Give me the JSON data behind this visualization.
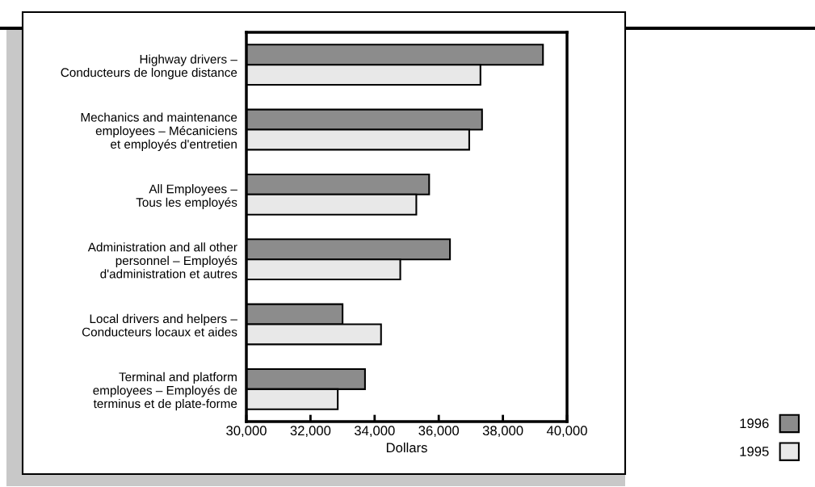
{
  "chart_data": {
    "type": "bar",
    "orientation": "horizontal",
    "xlabel": "Dollars",
    "categories": [
      "Highway drivers –\nConducteurs de longue distance",
      "Mechanics and maintenance\nemployees – Mécaniciens\net employés d'entretien",
      "All Employees –\nTous les employés",
      "Administration and all other\npersonnel – Employés\nd'administration et autres",
      "Local drivers and helpers –\nConducteurs locaux et aides",
      "Terminal and platform\nemployees – Employés de\nterminus et de plate-forme"
    ],
    "series": [
      {
        "name": "1996",
        "color": "#8c8c8c",
        "values": [
          39250,
          37350,
          35700,
          36350,
          33000,
          33700
        ]
      },
      {
        "name": "1995",
        "color": "#e8e8e8",
        "values": [
          37300,
          36950,
          35300,
          34800,
          34200,
          32850
        ]
      }
    ],
    "xlim": [
      30000,
      40000
    ],
    "xticks": [
      {
        "value": 30000,
        "label": "30,000"
      },
      {
        "value": 32000,
        "label": "32,000"
      },
      {
        "value": 34000,
        "label": "34,000"
      },
      {
        "value": 36000,
        "label": "36,000"
      },
      {
        "value": 38000,
        "label": "38,000"
      },
      {
        "value": 40000,
        "label": "40,000"
      }
    ],
    "grid": false,
    "legend": "bottom right"
  }
}
